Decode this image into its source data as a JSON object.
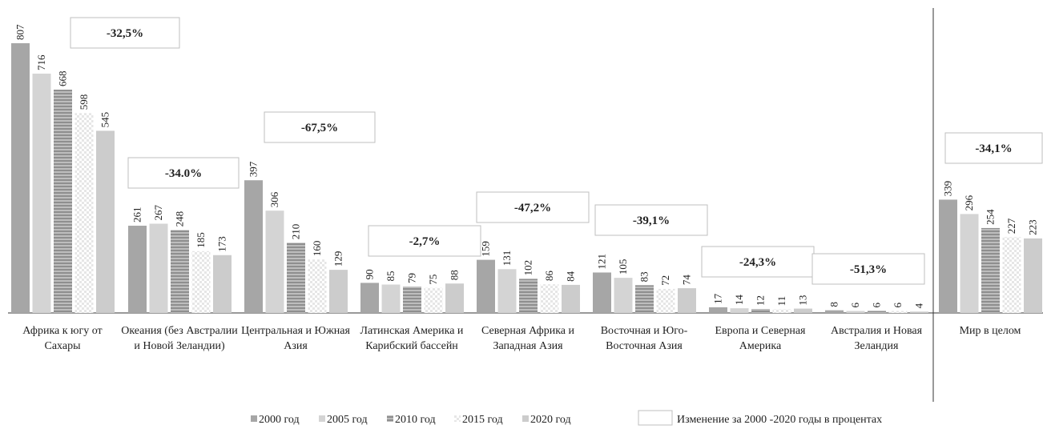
{
  "chart_data": {
    "type": "bar",
    "categories": [
      "Африка к югу от Сахары",
      "Океания (без Австралии и Новой Зеландии)",
      "Центральная и Южная Азия",
      "Латинская Америка и Карибский бассейн",
      "Северная Африка и Западная Азия",
      "Восточная и Юго-Восточная Азия",
      "Европа и Северная Америка",
      "Австралия и Новая Зеландия",
      "Мир в целом"
    ],
    "series": [
      {
        "name": "2000 год",
        "color": "#a6a6a6",
        "values": [
          807,
          261,
          397,
          90,
          159,
          121,
          17,
          8,
          339
        ]
      },
      {
        "name": "2005 год",
        "color": "#d4d4d4",
        "values": [
          716,
          267,
          306,
          85,
          131,
          105,
          14,
          6,
          296
        ]
      },
      {
        "name": "2010 год",
        "color": "#a6a6a6",
        "pattern": "stripes",
        "values": [
          668,
          248,
          210,
          79,
          102,
          83,
          12,
          6,
          254
        ]
      },
      {
        "name": "2015 год",
        "color": "#f0f0f0",
        "pattern": "checker",
        "values": [
          598,
          185,
          160,
          75,
          86,
          72,
          11,
          6,
          227
        ]
      },
      {
        "name": "2020 год",
        "color": "#cccccc",
        "values": [
          545,
          173,
          129,
          88,
          84,
          74,
          13,
          4,
          223
        ]
      }
    ],
    "annotations": [
      "-32,5%",
      "-34.0%",
      "-67,5%",
      "-2,7%",
      "-47,2%",
      "-39,1%",
      "-24,3%",
      "-51,3%",
      "-34,1%"
    ],
    "annotation_legend": "Изменение за 2000 -2020 годы в процентах"
  }
}
